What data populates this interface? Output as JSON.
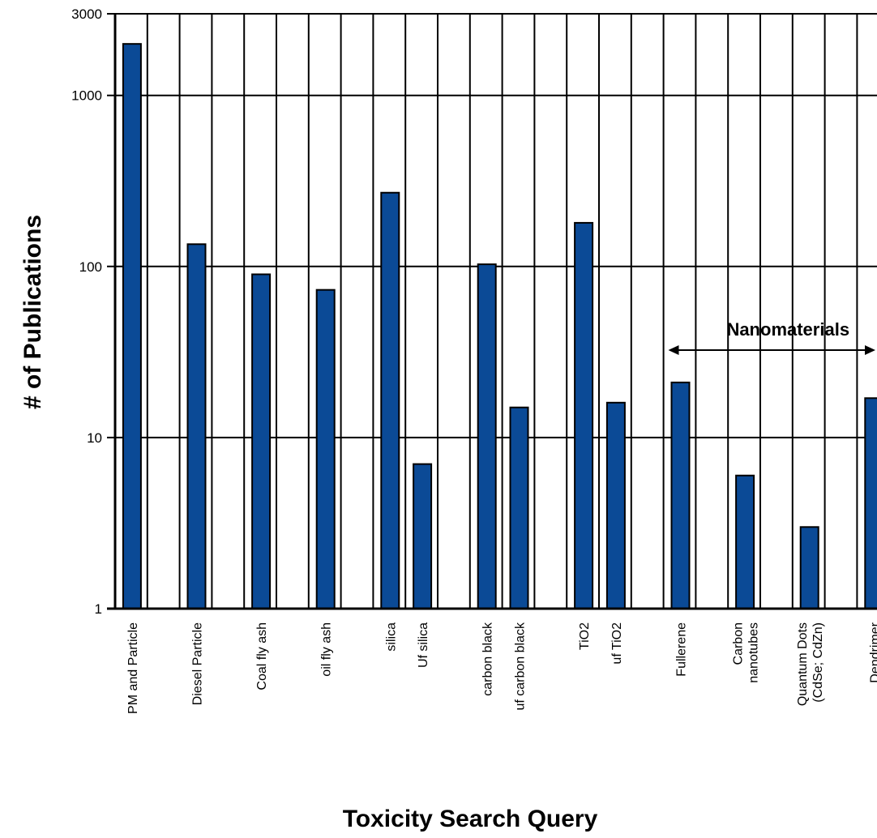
{
  "chart_data": {
    "type": "bar",
    "title": "",
    "xlabel": "Toxicity Search Query",
    "ylabel": "# of Publications",
    "yscale": "log",
    "ylim": [
      1,
      3000
    ],
    "yticks": [
      1,
      10,
      100,
      1000,
      3000
    ],
    "ytick_labels": [
      "1",
      "10",
      "100",
      "1000",
      "3000"
    ],
    "grid": true,
    "bar_color": "#0b4a96",
    "categories": [
      [
        "PM and Particle"
      ],
      [
        "Diesel Particle"
      ],
      [
        "Coal fly ash"
      ],
      [
        "oil fly ash"
      ],
      [
        "silica"
      ],
      [
        "Uf silica"
      ],
      [
        "carbon black"
      ],
      [
        "uf carbon black"
      ],
      [
        "TiO2"
      ],
      [
        "uf TiO2"
      ],
      [
        "Fullerene"
      ],
      [
        "Carbon",
        "nanotubes"
      ],
      [
        "Quantum Dots",
        "(CdSe; CdZn)"
      ],
      [
        "Dendrimer"
      ]
    ],
    "values": [
      2000,
      135,
      90,
      73,
      270,
      7,
      103,
      15,
      180,
      16,
      21,
      6,
      3,
      17
    ],
    "annotation": {
      "text": "Nanomaterials",
      "from_category": 10,
      "to_category": 13
    }
  }
}
